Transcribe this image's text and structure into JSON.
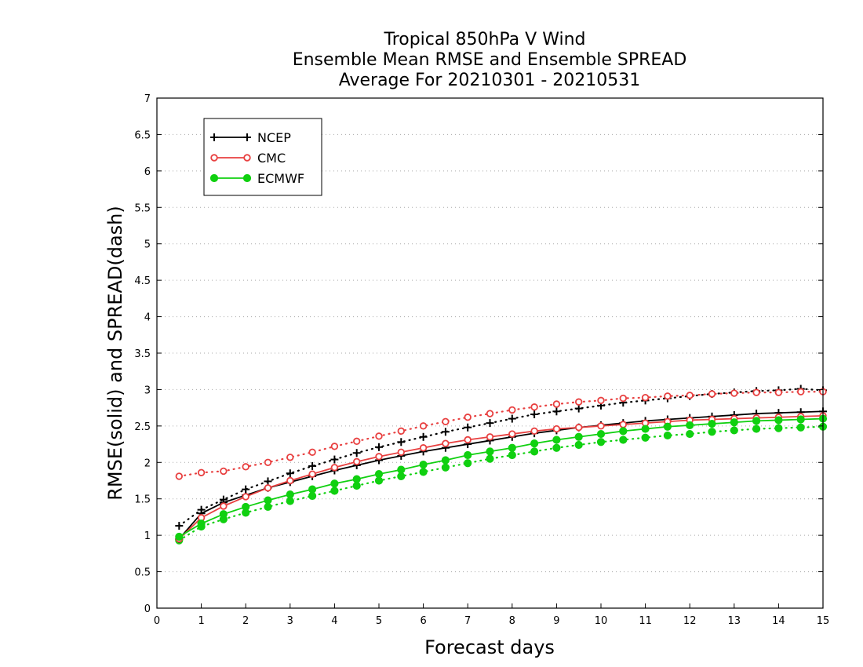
{
  "colors": {
    "NCEP": "#000000",
    "CMC": "#e84040",
    "ECMWF": "#10d010",
    "grid": "#aaaaaa"
  },
  "chart_data": {
    "type": "line",
    "title_lines": [
      "Tropical 850hPa V Wind",
      "Ensemble Mean RMSE and Ensemble SPREAD",
      "Average For 20210301 - 20210531"
    ],
    "xlabel": "Forecast days",
    "ylabel": "RMSE(solid) and SPREAD(dash)",
    "xlim": [
      0,
      15
    ],
    "ylim": [
      0,
      7
    ],
    "x_ticks": [
      "0",
      "1",
      "2",
      "3",
      "4",
      "5",
      "6",
      "7",
      "8",
      "9",
      "10",
      "11",
      "12",
      "13",
      "14",
      "15"
    ],
    "y_ticks": [
      "0",
      "0.5",
      "1",
      "1.5",
      "2",
      "2.5",
      "3",
      "3.5",
      "4",
      "4.5",
      "5",
      "5.5",
      "6",
      "6.5",
      "7"
    ],
    "y_tick_values": [
      0,
      0.5,
      1,
      1.5,
      2,
      2.5,
      3,
      3.5,
      4,
      4.5,
      5,
      5.5,
      6,
      6.5,
      7
    ],
    "grid": "horizontal dotted",
    "legend_position": "top-left",
    "x": [
      0.5,
      1,
      1.5,
      2,
      2.5,
      3,
      3.5,
      4,
      4.5,
      5,
      5.5,
      6,
      6.5,
      7,
      7.5,
      8,
      8.5,
      9,
      9.5,
      10,
      10.5,
      11,
      11.5,
      12,
      12.5,
      13,
      13.5,
      14,
      14.5,
      15
    ],
    "series": [
      {
        "name": "NCEP",
        "marker": "plus",
        "rmse": [
          0.95,
          1.3,
          1.45,
          1.55,
          1.65,
          1.73,
          1.81,
          1.89,
          1.96,
          2.03,
          2.09,
          2.15,
          2.2,
          2.25,
          2.3,
          2.35,
          2.4,
          2.44,
          2.48,
          2.51,
          2.54,
          2.57,
          2.59,
          2.61,
          2.63,
          2.65,
          2.67,
          2.68,
          2.69,
          2.7
        ],
        "spread": [
          1.13,
          1.35,
          1.49,
          1.63,
          1.74,
          1.85,
          1.95,
          2.04,
          2.13,
          2.21,
          2.28,
          2.35,
          2.42,
          2.48,
          2.54,
          2.6,
          2.66,
          2.7,
          2.74,
          2.78,
          2.82,
          2.85,
          2.88,
          2.91,
          2.94,
          2.96,
          2.98,
          2.99,
          3.01,
          2.99
        ]
      },
      {
        "name": "CMC",
        "marker": "open-circle",
        "rmse": [
          0.95,
          1.24,
          1.4,
          1.53,
          1.65,
          1.75,
          1.84,
          1.93,
          2.01,
          2.08,
          2.14,
          2.2,
          2.26,
          2.31,
          2.35,
          2.39,
          2.43,
          2.46,
          2.48,
          2.5,
          2.52,
          2.54,
          2.56,
          2.58,
          2.59,
          2.6,
          2.61,
          2.62,
          2.63,
          2.64
        ],
        "spread": [
          1.81,
          1.86,
          1.88,
          1.94,
          2.0,
          2.07,
          2.14,
          2.22,
          2.29,
          2.36,
          2.43,
          2.5,
          2.56,
          2.62,
          2.67,
          2.72,
          2.76,
          2.8,
          2.83,
          2.85,
          2.88,
          2.89,
          2.91,
          2.92,
          2.94,
          2.95,
          2.96,
          2.96,
          2.97,
          2.97
        ]
      },
      {
        "name": "ECMWF",
        "marker": "filled-circle",
        "rmse": [
          0.98,
          1.16,
          1.29,
          1.39,
          1.48,
          1.56,
          1.63,
          1.71,
          1.77,
          1.84,
          1.9,
          1.97,
          2.03,
          2.1,
          2.15,
          2.2,
          2.26,
          2.31,
          2.35,
          2.39,
          2.43,
          2.46,
          2.49,
          2.51,
          2.53,
          2.55,
          2.57,
          2.58,
          2.59,
          2.6
        ],
        "spread": [
          0.93,
          1.12,
          1.22,
          1.31,
          1.39,
          1.47,
          1.54,
          1.61,
          1.68,
          1.75,
          1.81,
          1.87,
          1.93,
          1.99,
          2.05,
          2.1,
          2.15,
          2.2,
          2.24,
          2.28,
          2.31,
          2.34,
          2.37,
          2.39,
          2.42,
          2.44,
          2.46,
          2.47,
          2.48,
          2.49
        ]
      }
    ]
  }
}
